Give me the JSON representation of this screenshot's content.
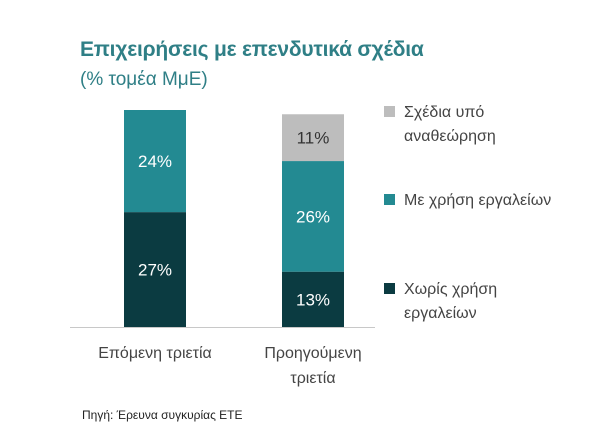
{
  "chart_data": {
    "type": "bar",
    "stacked": true,
    "title": "Επιχειρήσεις με επενδυτικά σχέδια",
    "subtitle": "(% τομέα ΜμΕ)",
    "categories": [
      "Επόμενη τριετία",
      "Προηγούμενη τριετία"
    ],
    "category_lines": [
      [
        "Επόμενη τριετία"
      ],
      [
        "Προηγούμενη",
        "τριετία"
      ]
    ],
    "ylim": [
      0,
      51
    ],
    "series": [
      {
        "name": "Χωρίς χρήση εργαλείων",
        "name_lines": [
          "Χωρίς χρήση",
          "εργαλείων"
        ],
        "values": [
          27,
          13
        ],
        "labels": [
          "27%",
          "13%"
        ],
        "color": "#0b3b41",
        "label_color": "#ffffff"
      },
      {
        "name": "Με χρήση εργαλείων",
        "name_lines": [
          "Με χρήση εργαλείων"
        ],
        "values": [
          24,
          26
        ],
        "labels": [
          "24%",
          "26%"
        ],
        "color": "#238a92",
        "label_color": "#ffffff"
      },
      {
        "name": "Σχέδια υπό αναθεώρηση",
        "name_lines": [
          "Σχέδια υπό",
          "αναθεώρηση"
        ],
        "values": [
          null,
          11
        ],
        "labels": [
          null,
          "11%"
        ],
        "color": "#bdbdbd",
        "label_color": "#333333"
      }
    ],
    "legend_position": "right",
    "grid": false
  },
  "source": "Πηγή: Έρευνα συγκυρίας ΕΤΕ"
}
